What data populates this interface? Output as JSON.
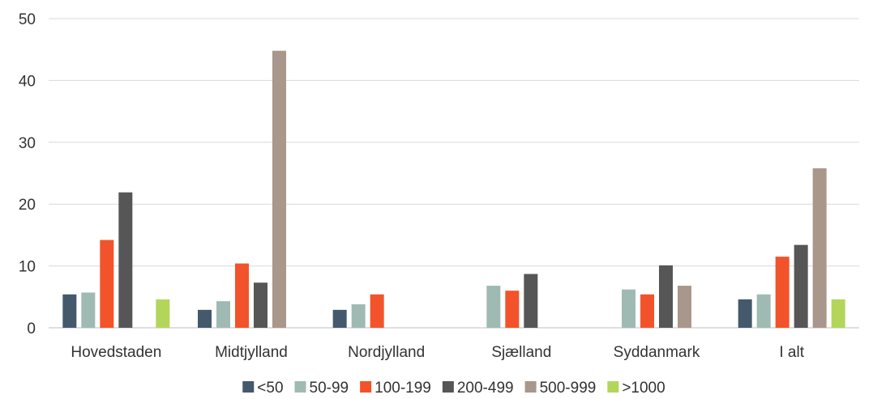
{
  "chart_data": {
    "type": "bar",
    "title": "",
    "xlabel": "",
    "ylabel": "",
    "ylim": [
      0,
      50
    ],
    "yticks": [
      0,
      10,
      20,
      30,
      40,
      50
    ],
    "grid": true,
    "legend_position": "bottom",
    "categories": [
      "Hovedstaden",
      "Midtjylland",
      "Nordjylland",
      "Sjælland",
      "Syddanmark",
      "I alt"
    ],
    "series": [
      {
        "name": "<50",
        "color": "#44596b",
        "values": [
          5.4,
          2.9,
          2.9,
          null,
          null,
          4.6
        ]
      },
      {
        "name": "50-99",
        "color": "#9fbab2",
        "values": [
          5.7,
          4.3,
          3.8,
          6.8,
          6.2,
          5.4
        ]
      },
      {
        "name": "100-199",
        "color": "#f2532a",
        "values": [
          14.2,
          10.4,
          5.4,
          6.0,
          5.4,
          11.5
        ]
      },
      {
        "name": "200-499",
        "color": "#565656",
        "values": [
          21.9,
          7.3,
          null,
          8.7,
          10.1,
          13.4
        ]
      },
      {
        "name": "500-999",
        "color": "#a8978a",
        "values": [
          null,
          44.8,
          null,
          null,
          6.8,
          25.8
        ]
      },
      {
        "name": ">1000",
        "color": "#b3d65a",
        "values": [
          4.6,
          null,
          null,
          null,
          null,
          4.6
        ]
      }
    ]
  }
}
